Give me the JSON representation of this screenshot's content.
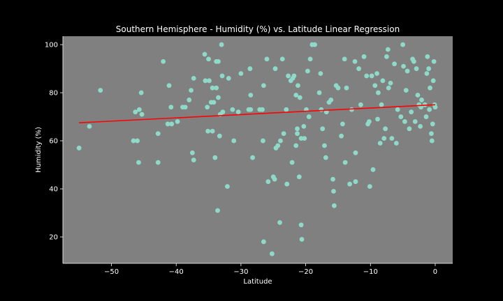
{
  "chart_data": {
    "type": "scatter",
    "title": "Southern Hemisphere - Humidity (%) vs. Latitude Linear Regression",
    "xlabel": "Latitude",
    "ylabel": "Humidity (%)",
    "xlim": [
      -57.5,
      2.7
    ],
    "ylim": [
      9,
      103.5
    ],
    "xticks": [
      -50,
      -40,
      -30,
      -20,
      -10,
      0
    ],
    "yticks": [
      20,
      40,
      60,
      80,
      100
    ],
    "grid": false,
    "colors": {
      "figure_background": "#000000",
      "plot_background": "#808080",
      "points": "#8fd9c8",
      "regression_line": "#ff0000",
      "text": "#ffffff"
    },
    "regression": {
      "x": [
        -55,
        0
      ],
      "y": [
        67.5,
        75.0
      ]
    },
    "points": [
      [
        -55.0,
        57
      ],
      [
        -53.4,
        66
      ],
      [
        -51.7,
        81
      ],
      [
        -46.6,
        60
      ],
      [
        -46.3,
        72
      ],
      [
        -46.0,
        60
      ],
      [
        -45.8,
        51
      ],
      [
        -45.7,
        73
      ],
      [
        -45.4,
        80
      ],
      [
        -45.3,
        71
      ],
      [
        -42.8,
        51
      ],
      [
        -42.8,
        63
      ],
      [
        -42.0,
        93
      ],
      [
        -41.3,
        67
      ],
      [
        -41.1,
        83
      ],
      [
        -40.8,
        74
      ],
      [
        -40.7,
        67
      ],
      [
        -39.8,
        68
      ],
      [
        -39.0,
        74
      ],
      [
        -38.6,
        74
      ],
      [
        -38.0,
        77
      ],
      [
        -37.7,
        81
      ],
      [
        -37.5,
        55
      ],
      [
        -37.3,
        86
      ],
      [
        -37.3,
        52
      ],
      [
        -35.6,
        96
      ],
      [
        -35.5,
        85
      ],
      [
        -35.2,
        74
      ],
      [
        -35.1,
        64
      ],
      [
        -35.0,
        94
      ],
      [
        -34.9,
        85
      ],
      [
        -34.6,
        76
      ],
      [
        -34.4,
        64
      ],
      [
        -34.4,
        82
      ],
      [
        -34.2,
        76
      ],
      [
        -34.0,
        53
      ],
      [
        -33.8,
        82
      ],
      [
        -33.8,
        93
      ],
      [
        -33.6,
        31
      ],
      [
        -33.5,
        93
      ],
      [
        -33.5,
        78
      ],
      [
        -33.3,
        62
      ],
      [
        -33.2,
        71
      ],
      [
        -33.0,
        100
      ],
      [
        -32.9,
        87
      ],
      [
        -32.8,
        72
      ],
      [
        -32.1,
        41
      ],
      [
        -31.9,
        86
      ],
      [
        -31.3,
        73
      ],
      [
        -31.1,
        60
      ],
      [
        -30.0,
        88
      ],
      [
        -28.8,
        73
      ],
      [
        -28.6,
        90
      ],
      [
        -28.5,
        79
      ],
      [
        -28.5,
        73
      ],
      [
        -28.2,
        53
      ],
      [
        -27.1,
        73
      ],
      [
        -26.7,
        73
      ],
      [
        -26.6,
        60
      ],
      [
        -26.5,
        83
      ],
      [
        -26.5,
        18
      ],
      [
        -26.0,
        94
      ],
      [
        -25.8,
        43
      ],
      [
        -25.2,
        13
      ],
      [
        -25.0,
        45
      ],
      [
        -24.8,
        44
      ],
      [
        -24.7,
        90
      ],
      [
        -24.6,
        57
      ],
      [
        -24.3,
        58
      ],
      [
        -24.0,
        26
      ],
      [
        -23.6,
        94
      ],
      [
        -23.4,
        63
      ],
      [
        -23.0,
        73
      ],
      [
        -22.9,
        42
      ],
      [
        -22.7,
        87
      ],
      [
        -22.3,
        85
      ],
      [
        -22.1,
        51
      ],
      [
        -22.0,
        86
      ],
      [
        -21.8,
        87
      ],
      [
        -21.5,
        58
      ],
      [
        -21.5,
        79
      ],
      [
        -21.3,
        65
      ],
      [
        -21.3,
        63
      ],
      [
        -21.2,
        83
      ],
      [
        -21.0,
        45
      ],
      [
        -20.9,
        78
      ],
      [
        -20.7,
        61
      ],
      [
        -20.7,
        25
      ],
      [
        -20.6,
        19
      ],
      [
        -20.3,
        66
      ],
      [
        -20.2,
        61
      ],
      [
        -19.9,
        73
      ],
      [
        -19.7,
        89
      ],
      [
        -19.5,
        70
      ],
      [
        -19.3,
        94
      ],
      [
        -19.0,
        100
      ],
      [
        -18.6,
        100
      ],
      [
        -17.9,
        80
      ],
      [
        -17.7,
        88
      ],
      [
        -17.6,
        73
      ],
      [
        -17.4,
        65
      ],
      [
        -17.1,
        58
      ],
      [
        -16.9,
        53
      ],
      [
        -16.8,
        72
      ],
      [
        -16.4,
        76
      ],
      [
        -16.1,
        77
      ],
      [
        -15.8,
        44
      ],
      [
        -15.7,
        39
      ],
      [
        -15.6,
        33
      ],
      [
        -15.3,
        83
      ],
      [
        -15.0,
        82
      ],
      [
        -14.5,
        62
      ],
      [
        -14.3,
        67
      ],
      [
        -14.0,
        94
      ],
      [
        -13.9,
        51
      ],
      [
        -13.7,
        82
      ],
      [
        -13.2,
        42
      ],
      [
        -12.9,
        73
      ],
      [
        -12.4,
        93
      ],
      [
        -12.3,
        55
      ],
      [
        -12.3,
        43
      ],
      [
        -11.5,
        75
      ],
      [
        -11.0,
        95
      ],
      [
        -10.6,
        87
      ],
      [
        -10.4,
        67
      ],
      [
        -10.2,
        68
      ],
      [
        -10.1,
        41
      ],
      [
        -9.8,
        87
      ],
      [
        -9.6,
        48
      ],
      [
        -9.3,
        83
      ],
      [
        -9.0,
        88
      ],
      [
        -8.9,
        69
      ],
      [
        -8.8,
        80
      ],
      [
        -8.5,
        59
      ],
      [
        -8.3,
        75
      ],
      [
        -8.1,
        85
      ],
      [
        -7.9,
        61
      ],
      [
        -7.7,
        65
      ],
      [
        -7.5,
        95
      ],
      [
        -7.3,
        98
      ],
      [
        -7.2,
        82
      ],
      [
        -6.9,
        84
      ],
      [
        -6.7,
        61
      ],
      [
        -6.3,
        92
      ],
      [
        -6.0,
        59
      ],
      [
        -5.8,
        73
      ],
      [
        -5.3,
        70
      ],
      [
        -5.0,
        100
      ],
      [
        -4.9,
        91
      ],
      [
        -4.5,
        81
      ],
      [
        -4.3,
        89
      ],
      [
        -4.0,
        65
      ],
      [
        -3.7,
        72
      ],
      [
        -3.5,
        94
      ],
      [
        -3.3,
        93
      ],
      [
        -3.1,
        68
      ],
      [
        -2.9,
        90
      ],
      [
        -2.7,
        79
      ],
      [
        -2.5,
        75
      ],
      [
        -2.3,
        66
      ],
      [
        -2.1,
        77
      ],
      [
        -1.6,
        75
      ],
      [
        -1.4,
        70
      ],
      [
        -1.3,
        88
      ],
      [
        -1.2,
        95
      ],
      [
        -1.0,
        90
      ],
      [
        -0.8,
        82
      ],
      [
        -0.6,
        63
      ],
      [
        -0.5,
        60
      ],
      [
        -0.4,
        67
      ],
      [
        -0.3,
        85
      ],
      [
        -0.2,
        93
      ],
      [
        -0.1,
        75
      ],
      [
        0.0,
        74
      ],
      [
        -0.9,
        73
      ],
      [
        -2.2,
        74
      ],
      [
        -4.7,
        68
      ],
      [
        -11.8,
        90
      ],
      [
        -30.4,
        72
      ],
      [
        -23.9,
        60
      ]
    ]
  }
}
